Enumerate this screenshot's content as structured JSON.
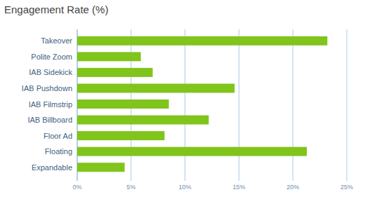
{
  "chart_data": {
    "type": "bar",
    "orientation": "horizontal",
    "title": "Engagement Rate (%)",
    "categories": [
      "Takeover",
      "Polite Zoom",
      "IAB Sidekick",
      "IAB Pushdown",
      "IAB Filmstrip",
      "IAB Billboard",
      "Floor Ad",
      "Floating",
      "Expandable"
    ],
    "values": [
      23.2,
      5.9,
      7.0,
      14.6,
      8.5,
      12.2,
      8.1,
      21.3,
      4.4
    ],
    "color": "#80c41c",
    "xlim": [
      0,
      25
    ],
    "xticks": [
      {
        "value": 0,
        "label": "0%"
      },
      {
        "value": 5,
        "label": "5%"
      },
      {
        "value": 10,
        "label": "10%"
      },
      {
        "value": 15,
        "label": "15%"
      },
      {
        "value": 20,
        "label": "20%"
      },
      {
        "value": 25,
        "label": "25%"
      }
    ],
    "grid": true
  }
}
